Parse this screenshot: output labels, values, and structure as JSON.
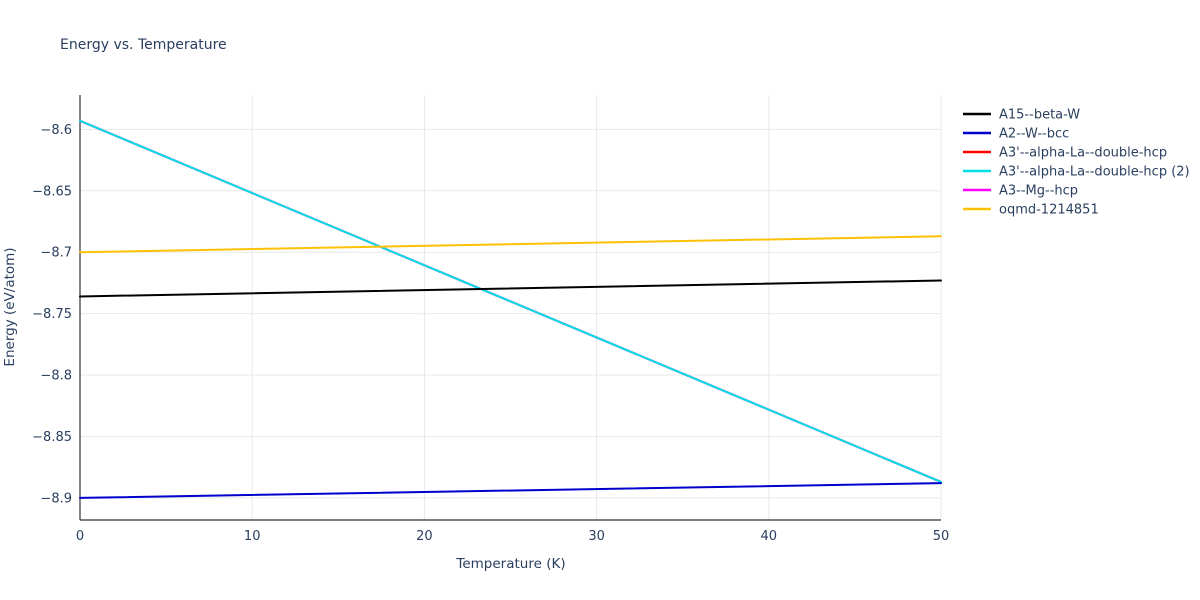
{
  "chart_data": {
    "type": "line",
    "title": "Energy vs. Temperature",
    "xlabel": "Temperature (K)",
    "ylabel": "Energy (eV/atom)",
    "xlim": [
      0,
      50
    ],
    "ylim": [
      -8.918,
      -8.572
    ],
    "xticks": [
      0,
      10,
      20,
      30,
      40,
      50
    ],
    "xtick_labels": [
      "0",
      "10",
      "20",
      "30",
      "40",
      "50"
    ],
    "yticks": [
      -8.6,
      -8.65,
      -8.7,
      -8.75,
      -8.8,
      -8.85,
      -8.9
    ],
    "ytick_labels": [
      "−8.6",
      "−8.65",
      "−8.7",
      "−8.75",
      "−8.8",
      "−8.85",
      "−8.9"
    ],
    "grid": true,
    "legend_position": "outside-right-top",
    "colors": {
      "text": "#2a3f5f",
      "grid": "#e8e8e8",
      "axis": "#333333"
    },
    "series": [
      {
        "name": "A15--beta-W",
        "color": "#000000",
        "x": [
          0,
          50
        ],
        "y": [
          -8.736,
          -8.723
        ]
      },
      {
        "name": "A2--W--bcc",
        "color": "#0000cc",
        "x": [
          0,
          50
        ],
        "y": [
          -8.9,
          -8.888
        ]
      },
      {
        "name": "A3'--alpha-La--double-hcp",
        "color": "#ff0000",
        "x": [
          0,
          50
        ],
        "y": [
          -8.593,
          -8.887
        ]
      },
      {
        "name": "A3'--alpha-La--double-hcp (2)",
        "color": "#00e0e6",
        "x": [
          0,
          50
        ],
        "y": [
          -8.593,
          -8.887
        ]
      },
      {
        "name": "A3--Mg--hcp",
        "color": "#ff00ff",
        "x": [
          0,
          50
        ],
        "y": [
          -8.593,
          -8.887
        ]
      },
      {
        "name": "oqmd-1214851",
        "color": "#ffc107",
        "x": [
          0,
          50
        ],
        "y": [
          -8.7,
          -8.687
        ]
      }
    ],
    "draw_order": [
      "A3'--alpha-La--double-hcp",
      "A3--Mg--hcp",
      "A3'--alpha-La--double-hcp (2)",
      "A15--beta-W",
      "A2--W--bcc",
      "oqmd-1214851"
    ]
  }
}
